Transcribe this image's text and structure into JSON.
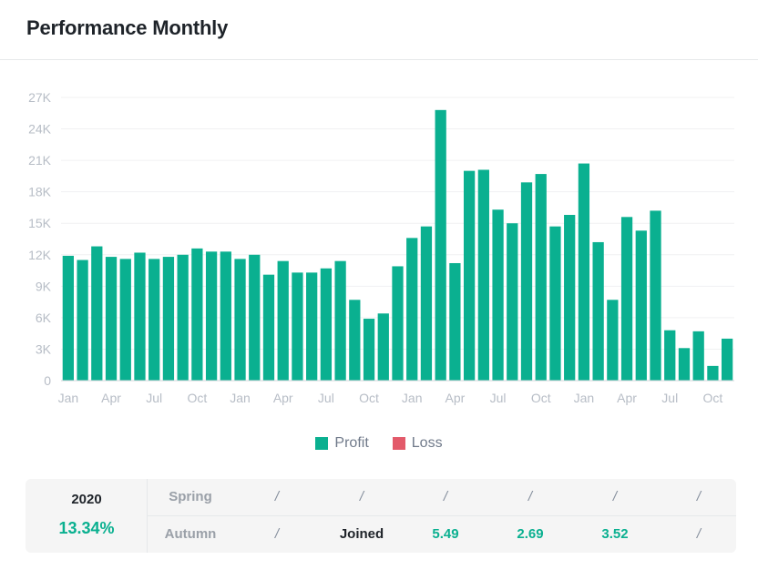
{
  "header": {
    "title": "Performance Monthly"
  },
  "colors": {
    "profit": "#0ab090",
    "loss": "#e35a6a",
    "grid": "#f0f1f2",
    "axis_text": "#b7bdc6",
    "baseline": "#d0d4da"
  },
  "legend": {
    "profit_label": "Profit",
    "loss_label": "Loss"
  },
  "chart_data": {
    "type": "bar",
    "y_ticks": [
      "0",
      "3K",
      "6K",
      "9K",
      "12K",
      "15K",
      "18K",
      "21K",
      "24K",
      "27K"
    ],
    "ylim": [
      0,
      27000
    ],
    "grid": true,
    "legend_position": "bottom-center",
    "x_tick_labels": [
      "Jan",
      "Apr",
      "Jul",
      "Oct",
      "Jan",
      "Apr",
      "Jul",
      "Oct",
      "Jan",
      "Apr",
      "Jul",
      "Oct",
      "Jan",
      "Apr",
      "Jul",
      "Oct"
    ],
    "x_tick_bar_index": [
      0,
      3,
      6,
      9,
      12,
      15,
      18,
      21,
      24,
      27,
      30,
      33,
      36,
      39,
      42,
      45
    ],
    "series": [
      {
        "name": "Profit",
        "values": [
          11900,
          11500,
          12800,
          11800,
          11600,
          12200,
          11600,
          11800,
          12000,
          12600,
          12300,
          12300,
          11600,
          12000,
          10100,
          11400,
          10300,
          10300,
          10700,
          11400,
          7700,
          5900,
          6400,
          10900,
          13600,
          14700,
          25800,
          11200,
          20000,
          20100,
          16300,
          15000,
          18900,
          19700,
          14700,
          15800,
          20700,
          13200,
          7700,
          15600,
          14300,
          16200,
          4800,
          3100,
          4700,
          1400,
          4000
        ]
      },
      {
        "name": "Loss",
        "values": []
      }
    ]
  },
  "summary": {
    "year": "2020",
    "yield": "13.34%",
    "row1": [
      "Spring",
      "/",
      "/",
      "/",
      "/",
      "/",
      "/"
    ],
    "row2": [
      "Autumn",
      "/",
      "Joined",
      "5.49",
      "2.69",
      "3.52",
      "/"
    ]
  }
}
